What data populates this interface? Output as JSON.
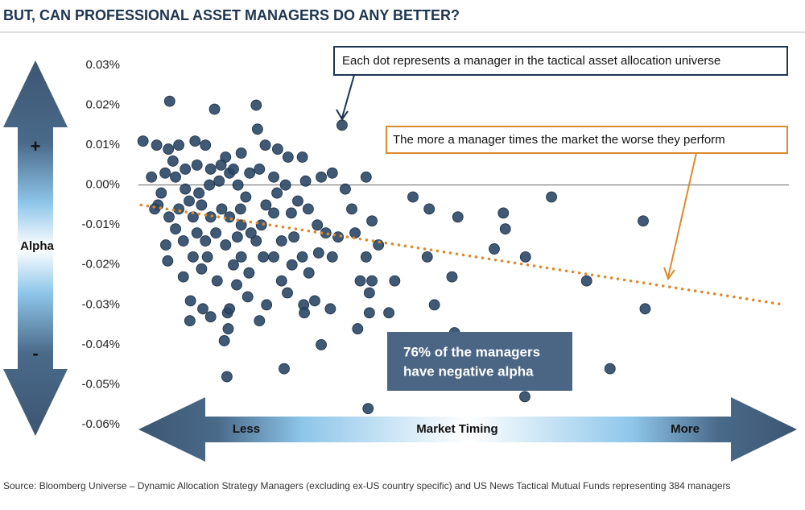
{
  "chart_data": {
    "type": "scatter",
    "title": "BUT, CAN PROFESSIONAL ASSET MANAGERS DO ANY BETTER?",
    "y_axis": {
      "plus": "+",
      "label": "Alpha",
      "minus": "-"
    },
    "x_axis": {
      "low": "Less",
      "label": "Market Timing",
      "high": "More"
    },
    "annotations": {
      "dots": "Each dot represents a manager in the tactical asset allocation universe",
      "trend": "The more a manager times the market the worse they perform",
      "callout": [
        "76% of the managers",
        "have negative alpha"
      ]
    },
    "source": "Source: Bloomberg Universe – Dynamic Allocation Strategy Managers (excluding ex-US country specific) and US News Tactical Mutual Funds representing 384 managers",
    "xlim": [
      0,
      100
    ],
    "ylim": [
      -0.06,
      0.03
    ],
    "yticks": [
      {
        "value": 0.03,
        "label": "0.03%"
      },
      {
        "value": 0.02,
        "label": "0.02%"
      },
      {
        "value": 0.01,
        "label": "0.01%"
      },
      {
        "value": 0,
        "label": "0.00%"
      },
      {
        "value": -0.01,
        "label": "-0.01%"
      },
      {
        "value": -0.02,
        "label": "-0.02%"
      },
      {
        "value": -0.03,
        "label": "-0.03%"
      },
      {
        "value": -0.04,
        "label": "-0.04%"
      },
      {
        "value": -0.05,
        "label": "-0.05%"
      },
      {
        "value": -0.06,
        "label": "-0.06%"
      }
    ],
    "color": "#2b4766",
    "trend_line": {
      "color": "#dc8a2e",
      "x": [
        0.4,
        99.4
      ],
      "y": [
        -0.005,
        -0.03
      ]
    },
    "x": [
      4.8,
      11.7,
      18.1,
      31.3,
      0.7,
      2.8,
      18.3,
      35.0,
      42.2,
      44.7,
      49.1,
      56.1,
      63.5,
      77.6,
      56.4,
      54.7,
      59.5,
      44.4,
      48.2,
      68.9,
      45.5,
      77.9,
      48.6,
      33.7,
      72.5,
      59.4,
      35.3,
      22.4,
      13.6,
      28.1,
      13.2,
      13.8,
      38.5,
      35.5,
      39.4,
      35.9,
      34.1,
      35.5,
      36.9,
      35.0,
      32.8,
      35.9,
      33.3,
      31.8,
      29.8,
      28.1,
      25.7,
      25.2,
      23.0,
      21.4,
      19.5,
      15.8,
      13.4,
      10.3,
      8.7,
      6.2,
      4.6,
      2.0,
      3.0,
      4.2,
      4.5,
      6.9,
      8.0,
      7.9,
      9.9,
      11.1,
      13.7,
      15.1,
      16.8,
      18.6,
      19.7,
      22.0,
      22.9,
      25.4,
      27.1,
      29.5,
      25.5,
      23.6,
      26.2,
      25.2,
      27.7,
      29.8,
      30.7,
      28.8,
      27.5,
      26.1,
      24.5,
      23.5,
      21.3,
      20.8,
      19.6,
      18.9,
      18.1,
      19.2,
      17.0,
      15.8,
      14.6,
      13.4,
      11.9,
      10.6,
      9.7,
      8.4,
      6.9,
      5.7,
      4.7,
      6.2,
      7.8,
      9.3,
      10.9,
      12.4,
      14.0,
      15.3,
      16.5,
      15.7,
      14.0,
      12.8,
      11.1,
      9.7,
      8.4,
      7.2,
      5.7,
      4.1,
      5.3,
      7.2,
      9.0,
      11.1,
      12.7,
      14.6,
      17.1,
      18.6,
      20.8,
      22.6,
      15.8,
      17.3,
      15.2,
      12.1,
      14.0,
      20.8,
      22.0,
      23.9,
      3.5,
      2.5,
      9.0,
      10.3
    ],
    "y": [
      0.021,
      0.019,
      0.02,
      0.015,
      0.011,
      0.01,
      0.014,
      0.002,
      -0.003,
      -0.006,
      -0.008,
      -0.007,
      -0.003,
      -0.009,
      -0.011,
      -0.016,
      -0.018,
      -0.018,
      -0.023,
      -0.024,
      -0.03,
      -0.031,
      -0.037,
      -0.036,
      -0.046,
      -0.053,
      -0.056,
      -0.046,
      -0.048,
      -0.04,
      -0.039,
      -0.036,
      -0.032,
      -0.032,
      -0.024,
      -0.024,
      -0.024,
      -0.027,
      -0.015,
      -0.018,
      -0.006,
      -0.009,
      -0.012,
      -0.001,
      0.003,
      0.002,
      0.001,
      0.007,
      0.007,
      0.009,
      0.01,
      0.008,
      0.007,
      0.01,
      0.011,
      0.01,
      0.009,
      0.002,
      -0.005,
      -0.015,
      -0.019,
      -0.023,
      -0.029,
      -0.034,
      -0.031,
      -0.033,
      -0.032,
      -0.025,
      -0.028,
      -0.034,
      -0.03,
      -0.024,
      -0.027,
      -0.03,
      -0.029,
      -0.031,
      -0.032,
      -0.02,
      -0.022,
      -0.018,
      -0.017,
      -0.018,
      -0.013,
      -0.012,
      -0.01,
      -0.006,
      -0.004,
      -0.007,
      -0.002,
      -0.007,
      -0.005,
      -0.01,
      -0.014,
      -0.018,
      -0.022,
      -0.018,
      -0.02,
      -0.015,
      -0.012,
      -0.018,
      -0.021,
      -0.018,
      -0.014,
      -0.011,
      -0.008,
      -0.006,
      -0.004,
      -0.002,
      0.0,
      0.001,
      0.003,
      0.0,
      -0.003,
      -0.006,
      -0.008,
      -0.006,
      -0.008,
      -0.005,
      -0.008,
      -0.001,
      0.002,
      0.003,
      0.006,
      0.004,
      0.005,
      0.004,
      0.005,
      0.004,
      0.003,
      0.004,
      0.002,
      0.0,
      -0.01,
      -0.012,
      -0.013,
      -0.024,
      -0.031,
      -0.018,
      -0.014,
      -0.013,
      -0.002,
      -0.006,
      -0.012,
      -0.014
    ]
  }
}
